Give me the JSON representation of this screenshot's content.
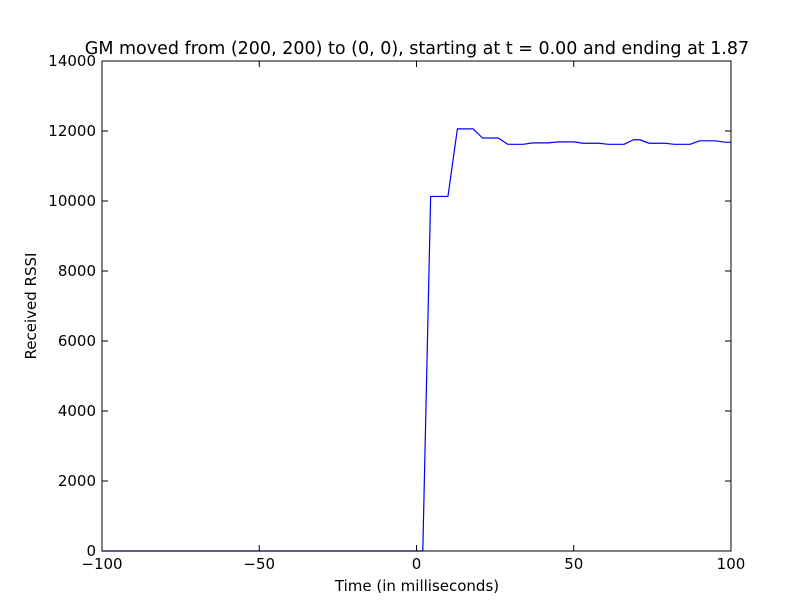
{
  "chart_data": {
    "type": "line",
    "title": "GM moved from (200, 200) to (0, 0), starting at t = 0.00 and ending at 1.87",
    "xlabel": "Time (in milliseconds)",
    "ylabel": "Received RSSI",
    "xlim": [
      -100,
      100
    ],
    "ylim": [
      0,
      14000
    ],
    "x_ticks": [
      -100,
      -50,
      0,
      50,
      100
    ],
    "x_tick_labels": [
      "−100",
      "−50",
      "0",
      "50",
      "100"
    ],
    "y_ticks": [
      0,
      2000,
      4000,
      6000,
      8000,
      10000,
      12000,
      14000
    ],
    "y_tick_labels": [
      "0",
      "2000",
      "4000",
      "6000",
      "8000",
      "10000",
      "12000",
      "14000"
    ],
    "grid": false,
    "line_color": "#0000ff",
    "series": [
      {
        "x": [
          -100,
          2,
          4.5,
          10,
          13,
          18,
          21,
          26,
          29,
          34,
          37,
          42,
          45,
          50,
          53,
          58,
          61,
          66,
          69,
          71,
          74,
          79,
          82,
          87,
          90,
          95,
          98,
          100
        ],
        "y": [
          0,
          0,
          10130,
          10130,
          12060,
          12060,
          11800,
          11800,
          11620,
          11620,
          11660,
          11660,
          11690,
          11690,
          11650,
          11650,
          11620,
          11620,
          11750,
          11750,
          11650,
          11650,
          11620,
          11620,
          11720,
          11720,
          11680,
          11680
        ]
      }
    ]
  }
}
